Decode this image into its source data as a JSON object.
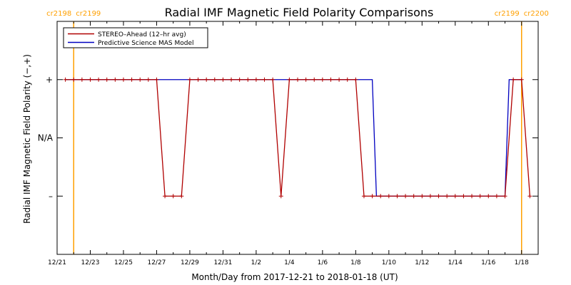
{
  "chart_data": {
    "type": "line",
    "title": "Radial IMF Magnetic Field Polarity Comparisons",
    "xlabel": "Month/Day from 2017-12-21 to 2018-01-18 (UT)",
    "ylabel": "Radial IMF Magnetic Field Polarity (−,+)",
    "x_range": [
      "2017-12-21",
      "2018-01-19"
    ],
    "x_tick_labels": [
      "12/21",
      "12/23",
      "12/25",
      "12/27",
      "12/29",
      "12/31",
      "1/2",
      "1/4",
      "1/6",
      "1/8",
      "1/10",
      "1/12",
      "1/14",
      "1/16",
      "1/18"
    ],
    "y_categories": [
      "+",
      "N/A",
      "–"
    ],
    "y_category_values": [
      1,
      0,
      -1
    ],
    "ylim": [
      -2,
      2
    ],
    "grid": false,
    "legend_position": "top-left",
    "rotation_markers": [
      {
        "date": "2017-12-22",
        "left": "cr2198",
        "right": "cr2199"
      },
      {
        "date": "2018-01-18",
        "left": "cr2199",
        "right": "cr2200"
      }
    ],
    "series": [
      {
        "name": "STEREO–Ahead (12–hr avg)",
        "color": "#b00000",
        "markers": true,
        "points": [
          [
            "2017-12-21 12:00",
            1
          ],
          [
            "2017-12-22 00:00",
            1
          ],
          [
            "2017-12-22 12:00",
            1
          ],
          [
            "2017-12-23 00:00",
            1
          ],
          [
            "2017-12-23 12:00",
            1
          ],
          [
            "2017-12-24 00:00",
            1
          ],
          [
            "2017-12-24 12:00",
            1
          ],
          [
            "2017-12-25 00:00",
            1
          ],
          [
            "2017-12-25 12:00",
            1
          ],
          [
            "2017-12-26 00:00",
            1
          ],
          [
            "2017-12-26 12:00",
            1
          ],
          [
            "2017-12-27 00:00",
            1
          ],
          [
            "2017-12-27 12:00",
            -1
          ],
          [
            "2017-12-28 00:00",
            -1
          ],
          [
            "2017-12-28 12:00",
            -1
          ],
          [
            "2017-12-29 00:00",
            1
          ],
          [
            "2017-12-29 12:00",
            1
          ],
          [
            "2017-12-30 00:00",
            1
          ],
          [
            "2017-12-30 12:00",
            1
          ],
          [
            "2017-12-31 00:00",
            1
          ],
          [
            "2017-12-31 12:00",
            1
          ],
          [
            "2018-01-01 00:00",
            1
          ],
          [
            "2018-01-01 12:00",
            1
          ],
          [
            "2018-01-02 00:00",
            1
          ],
          [
            "2018-01-02 12:00",
            1
          ],
          [
            "2018-01-03 00:00",
            1
          ],
          [
            "2018-01-03 12:00",
            -1
          ],
          [
            "2018-01-04 00:00",
            1
          ],
          [
            "2018-01-04 12:00",
            1
          ],
          [
            "2018-01-05 00:00",
            1
          ],
          [
            "2018-01-05 12:00",
            1
          ],
          [
            "2018-01-06 00:00",
            1
          ],
          [
            "2018-01-06 12:00",
            1
          ],
          [
            "2018-01-07 00:00",
            1
          ],
          [
            "2018-01-07 12:00",
            1
          ],
          [
            "2018-01-08 00:00",
            1
          ],
          [
            "2018-01-08 12:00",
            -1
          ],
          [
            "2018-01-09 00:00",
            -1
          ],
          [
            "2018-01-09 12:00",
            -1
          ],
          [
            "2018-01-10 00:00",
            -1
          ],
          [
            "2018-01-10 12:00",
            -1
          ],
          [
            "2018-01-11 00:00",
            -1
          ],
          [
            "2018-01-11 12:00",
            -1
          ],
          [
            "2018-01-12 00:00",
            -1
          ],
          [
            "2018-01-12 12:00",
            -1
          ],
          [
            "2018-01-13 00:00",
            -1
          ],
          [
            "2018-01-13 12:00",
            -1
          ],
          [
            "2018-01-14 00:00",
            -1
          ],
          [
            "2018-01-14 12:00",
            -1
          ],
          [
            "2018-01-15 00:00",
            -1
          ],
          [
            "2018-01-15 12:00",
            -1
          ],
          [
            "2018-01-16 00:00",
            -1
          ],
          [
            "2018-01-16 12:00",
            -1
          ],
          [
            "2018-01-17 00:00",
            -1
          ],
          [
            "2018-01-17 12:00",
            1
          ],
          [
            "2018-01-18 00:00",
            1
          ],
          [
            "2018-01-18 12:00",
            -1
          ]
        ]
      },
      {
        "name": "Predictive Science MAS Model",
        "color": "#0000c0",
        "markers": false,
        "points": [
          [
            "2017-12-21 12:00",
            1
          ],
          [
            "2018-01-08 12:00",
            1
          ],
          [
            "2018-01-09 00:00",
            1
          ],
          [
            "2018-01-09 06:00",
            -1
          ],
          [
            "2018-01-16 12:00",
            -1
          ],
          [
            "2018-01-17 00:00",
            -1
          ],
          [
            "2018-01-17 06:00",
            1
          ],
          [
            "2018-01-18 00:00",
            1
          ]
        ]
      }
    ]
  }
}
